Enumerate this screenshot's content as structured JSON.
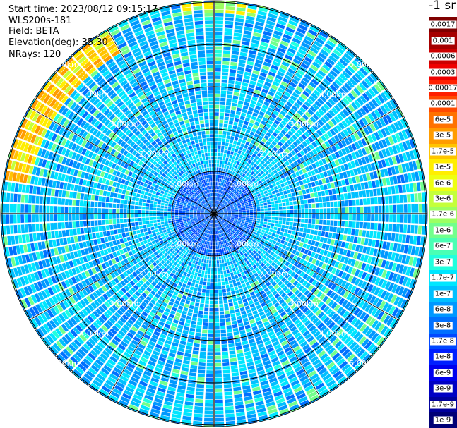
{
  "info": {
    "start_time": "Start time: 2023/08/12 09:15:17",
    "device": "WLS200s-181",
    "field": "Field: BETA",
    "elevation": "Elevation(deg): 35.30",
    "nrays": "NRays: 120"
  },
  "chart_data": {
    "type": "heatmap",
    "projection": "polar (PPI scan)",
    "n_rays": 120,
    "elevation_deg": 35.3,
    "field": "BETA",
    "unit_label": "-1 sr",
    "range_ring_labels": [
      "1.00km",
      "2.00km",
      "3.00km",
      "4.00km",
      "5.00km"
    ],
    "range_rings_km": [
      1,
      2,
      3,
      4,
      5
    ],
    "radial_spokes_deg_step": 30,
    "legend": [
      {
        "label": "0.0017",
        "color": "#7f0000"
      },
      {
        "label": "0.001",
        "color": "#a50000"
      },
      {
        "label": "0.0006",
        "color": "#cc0000"
      },
      {
        "label": "0.0003",
        "color": "#ee0000"
      },
      {
        "label": "0.00017",
        "color": "#ff2000"
      },
      {
        "label": "0.0001",
        "color": "#ff4a00"
      },
      {
        "label": "6e-5",
        "color": "#ff7200"
      },
      {
        "label": "3e-5",
        "color": "#ff9c00"
      },
      {
        "label": "1.7e-5",
        "color": "#ffc400"
      },
      {
        "label": "1e-5",
        "color": "#ffee00"
      },
      {
        "label": "6e-6",
        "color": "#eeff11"
      },
      {
        "label": "3e-6",
        "color": "#c4ff3a"
      },
      {
        "label": "1.7e-6",
        "color": "#9cff62"
      },
      {
        "label": "1e-6",
        "color": "#72ff8c"
      },
      {
        "label": "6e-7",
        "color": "#4aff b4"
      },
      {
        "label": "3e-7",
        "color": "#20ffde"
      },
      {
        "label": "1.7e-7",
        "color": "#00e6ff"
      },
      {
        "label": "1e-7",
        "color": "#00c0ff"
      },
      {
        "label": "6e-8",
        "color": "#0098ff"
      },
      {
        "label": "3e-8",
        "color": "#0070ff"
      },
      {
        "label": "1.7e-8",
        "color": "#0048ff"
      },
      {
        "label": "1e-8",
        "color": "#0020ff"
      },
      {
        "label": "6e-9",
        "color": "#0000ee"
      },
      {
        "label": "3e-9",
        "color": "#0000c4"
      },
      {
        "label": "1.7e-9",
        "color": "#00009c"
      },
      {
        "label": "1e-9",
        "color": "#000076"
      }
    ],
    "notes": "Mostly light/medium blue backscatter (~1e-7 to 3e-8), darker blue near centre, yellow-red band at far range on the west-southwest edge."
  }
}
